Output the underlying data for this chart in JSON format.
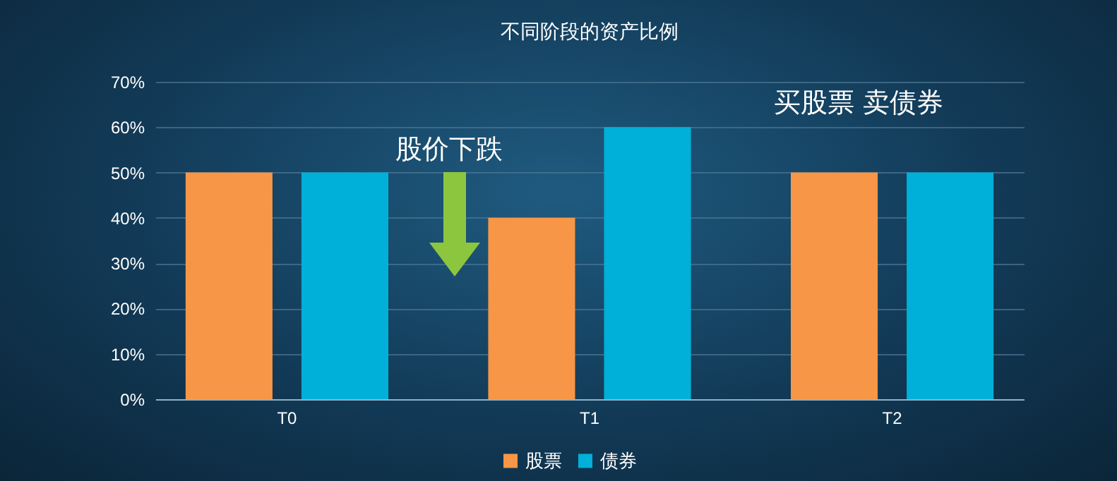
{
  "chart_data": {
    "type": "bar",
    "title": "不同阶段的资产比例",
    "categories": [
      "T0",
      "T1",
      "T2"
    ],
    "series": [
      {
        "name": "股票",
        "color": "#f79646",
        "values": [
          50,
          40,
          50
        ]
      },
      {
        "name": "债券",
        "color": "#00b0d8",
        "values": [
          50,
          60,
          50
        ]
      }
    ],
    "ylim": [
      0,
      70
    ],
    "yticks": [
      {
        "value": 0,
        "label": "0%"
      },
      {
        "value": 10,
        "label": "10%"
      },
      {
        "value": 20,
        "label": "20%"
      },
      {
        "value": 30,
        "label": "30%"
      },
      {
        "value": 40,
        "label": "40%"
      },
      {
        "value": 50,
        "label": "50%"
      },
      {
        "value": 60,
        "label": "60%"
      },
      {
        "value": 70,
        "label": "70%"
      }
    ],
    "grid": "y",
    "legend": "bottom",
    "annotations": [
      "股价下跌",
      "买股票 卖债券"
    ]
  }
}
